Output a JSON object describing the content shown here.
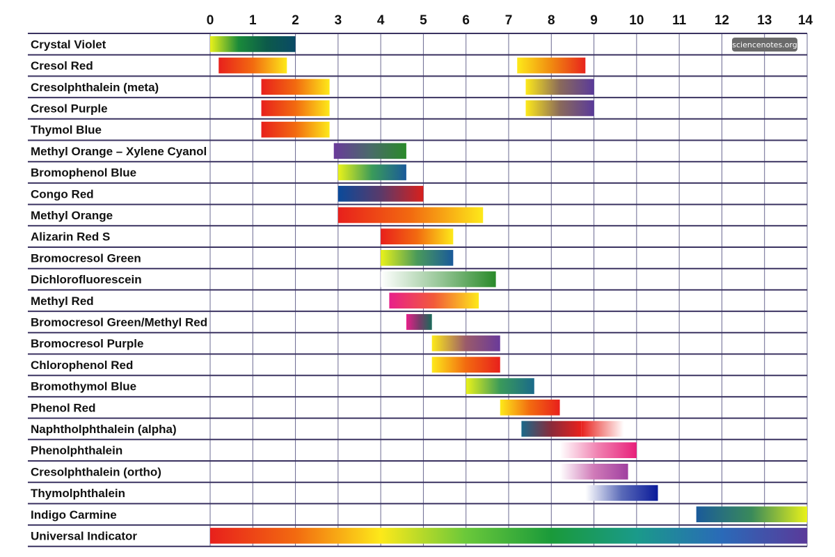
{
  "watermark": "sciencenotes.org",
  "chart_data": {
    "type": "bar",
    "subtype": "range",
    "xlim": [
      0,
      14
    ],
    "x_ticks": [
      "0",
      "1",
      "2",
      "3",
      "4",
      "5",
      "6",
      "7",
      "8",
      "9",
      "10",
      "11",
      "12",
      "13",
      "14"
    ],
    "grid": true,
    "indicators": [
      {
        "name": "Crystal Violet",
        "ranges": [
          {
            "from": 0,
            "to": 2,
            "colors": [
              "#e9f21a",
              "#1a8a3a",
              "#0c5a4a",
              "#0a4a66"
            ]
          }
        ]
      },
      {
        "name": "Cresol Red",
        "ranges": [
          {
            "from": 0.2,
            "to": 1.8,
            "colors": [
              "#e8201c",
              "#f26a10",
              "#fde91a"
            ]
          },
          {
            "from": 7.2,
            "to": 8.8,
            "colors": [
              "#fde91a",
              "#f08a10",
              "#e8241c"
            ]
          }
        ]
      },
      {
        "name": "Cresolphthalein (meta)",
        "ranges": [
          {
            "from": 1.2,
            "to": 2.8,
            "colors": [
              "#e8201c",
              "#f26a10",
              "#fde91a"
            ]
          },
          {
            "from": 7.4,
            "to": 9,
            "colors": [
              "#fde91a",
              "#8a6a5a",
              "#5a3a9a"
            ]
          }
        ]
      },
      {
        "name": "Cresol Purple",
        "ranges": [
          {
            "from": 1.2,
            "to": 2.8,
            "colors": [
              "#e8201c",
              "#f26a10",
              "#fde91a"
            ]
          },
          {
            "from": 7.4,
            "to": 9,
            "colors": [
              "#fde91a",
              "#8a6a5a",
              "#5a3a9a"
            ]
          }
        ]
      },
      {
        "name": "Thymol Blue",
        "ranges": [
          {
            "from": 1.2,
            "to": 2.8,
            "colors": [
              "#e8201c",
              "#f26a10",
              "#fde91a"
            ]
          }
        ]
      },
      {
        "name": "Methyl Orange – Xylene Cyanol",
        "ranges": [
          {
            "from": 2.9,
            "to": 4.6,
            "colors": [
              "#6a3a9a",
              "#4a6a6a",
              "#2a8a2a"
            ]
          }
        ]
      },
      {
        "name": "Bromophenol Blue",
        "ranges": [
          {
            "from": 3,
            "to": 4.6,
            "colors": [
              "#e9f21a",
              "#3a9a5a",
              "#1a5a9a"
            ]
          }
        ]
      },
      {
        "name": "Congo Red",
        "ranges": [
          {
            "from": 3,
            "to": 5,
            "colors": [
              "#0a4a9a",
              "#5a3a6a",
              "#d8201c"
            ]
          }
        ]
      },
      {
        "name": "Methyl Orange",
        "ranges": [
          {
            "from": 3,
            "to": 6.4,
            "colors": [
              "#e8201c",
              "#f26a10",
              "#fde91a"
            ]
          }
        ]
      },
      {
        "name": "Alizarin Red S",
        "ranges": [
          {
            "from": 4,
            "to": 5.7,
            "colors": [
              "#e8201c",
              "#f26a10",
              "#fde91a"
            ]
          }
        ]
      },
      {
        "name": "Bromocresol Green",
        "ranges": [
          {
            "from": 4,
            "to": 5.7,
            "colors": [
              "#e9f21a",
              "#4a9a5a",
              "#1a5a9a"
            ]
          }
        ]
      },
      {
        "name": "Dichlorofluorescein",
        "ranges": [
          {
            "from": 4,
            "to": 6.7,
            "colors": [
              "#ffffff",
              "#9ac89a",
              "#2a8a2a"
            ]
          }
        ]
      },
      {
        "name": "Methyl Red",
        "ranges": [
          {
            "from": 4.2,
            "to": 6.3,
            "colors": [
              "#e8208a",
              "#f25a3a",
              "#fde91a"
            ]
          }
        ]
      },
      {
        "name": "Bromocresol Green/Methyl Red",
        "ranges": [
          {
            "from": 4.6,
            "to": 5.2,
            "colors": [
              "#e8208a",
              "#7a3a6a",
              "#1a6a5a"
            ]
          }
        ]
      },
      {
        "name": "Bromocresol Purple",
        "ranges": [
          {
            "from": 5.2,
            "to": 6.8,
            "colors": [
              "#fde91a",
              "#9a5a6a",
              "#6a3a9a"
            ]
          }
        ]
      },
      {
        "name": "Chlorophenol Red",
        "ranges": [
          {
            "from": 5.2,
            "to": 6.8,
            "colors": [
              "#fde91a",
              "#f26a10",
              "#e8201c"
            ]
          }
        ]
      },
      {
        "name": "Bromothymol Blue",
        "ranges": [
          {
            "from": 6,
            "to": 7.6,
            "colors": [
              "#e9f21a",
              "#3a9a5a",
              "#1a6a8a"
            ]
          }
        ]
      },
      {
        "name": "Phenol Red",
        "ranges": [
          {
            "from": 6.8,
            "to": 8.2,
            "colors": [
              "#fde91a",
              "#f26a10",
              "#e8201c"
            ]
          }
        ]
      },
      {
        "name": "Naphtholphthalein (alpha)",
        "ranges": [
          {
            "from": 7.3,
            "to": 8.7,
            "colors": [
              "#1a6a8a",
              "#8a2a3a",
              "#e8201c"
            ]
          },
          {
            "from": 8.7,
            "to": 9.7,
            "colors": [
              "#e8201c",
              "#ffffff"
            ]
          }
        ]
      },
      {
        "name": "Phenolphthalein",
        "ranges": [
          {
            "from": 8.2,
            "to": 10,
            "colors": [
              "#ffffff",
              "#f080b0",
              "#e8207a"
            ]
          }
        ]
      },
      {
        "name": "Cresolphthalein (ortho)",
        "ranges": [
          {
            "from": 8.2,
            "to": 9.8,
            "colors": [
              "#ffffff",
              "#d07ab8",
              "#a040a0"
            ]
          }
        ]
      },
      {
        "name": "Thymolphthalein",
        "ranges": [
          {
            "from": 8.8,
            "to": 10.5,
            "colors": [
              "#ffffff",
              "#5a6ab8",
              "#0a1a9a"
            ]
          }
        ]
      },
      {
        "name": "Indigo Carmine",
        "ranges": [
          {
            "from": 11.4,
            "to": 14,
            "colors": [
              "#1a5a9a",
              "#3a8a5a",
              "#e9f21a"
            ]
          }
        ]
      },
      {
        "name": "Universal Indicator",
        "ranges": [
          {
            "from": 0,
            "to": 14,
            "colors": [
              "#e8201c",
              "#f26a10",
              "#fde91a",
              "#6ac83a",
              "#1a9a3a",
              "#1a9a8a",
              "#2a6ab8",
              "#5a3a9a"
            ]
          }
        ]
      }
    ]
  }
}
